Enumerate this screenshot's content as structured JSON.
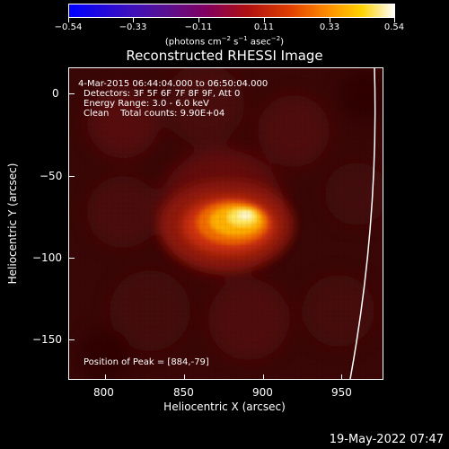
{
  "colorbar": {
    "ticks": [
      "−0.54",
      "−0.33",
      "−0.11",
      "0.11",
      "0.33",
      "0.54"
    ],
    "units": "(photons cm",
    "units_exp1": "−2",
    "units_mid": " s",
    "units_exp2": "−1",
    "units_tail": " asec",
    "units_exp3": "−2",
    "units_close": ")"
  },
  "title": "Reconstructed RHESSI Image",
  "info": {
    "time_range": "4-Mar-2015 06:44:04.000 to 06:50:04.000",
    "detectors": "Detectors: 3F 5F 6F 7F 8F 9F, Att 0",
    "energy": "Energy Range: 3.0 - 6.0 keV",
    "clean": "Clean    Total counts: 9.90E+04",
    "peak": "Position of Peak = [884,-79]"
  },
  "axes": {
    "xlabel": "Heliocentric X (arcsec)",
    "ylabel": "Heliocentric Y (arcsec)",
    "xticks": [
      "800",
      "850",
      "900",
      "950"
    ],
    "yticks": [
      "0",
      "−50",
      "−100",
      "−150"
    ]
  },
  "timestamp": "19-May-2022 07:47",
  "image_data": {
    "x_range_arcsec": [
      778,
      970
    ],
    "y_range_arcsec": [
      -175,
      16
    ],
    "peak": [
      884,
      -79
    ],
    "limb_color": "#ffffff"
  }
}
